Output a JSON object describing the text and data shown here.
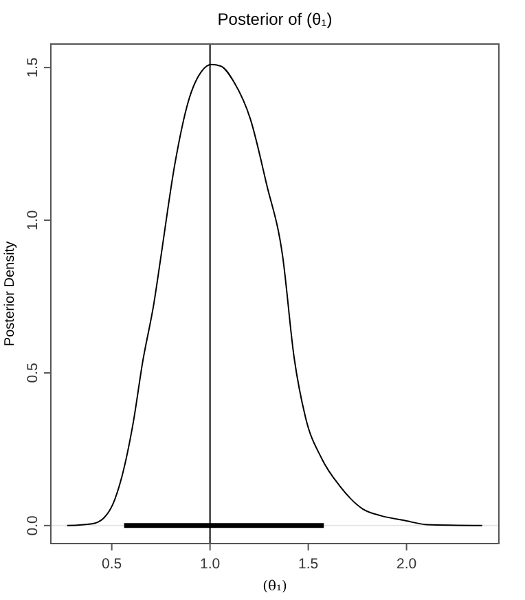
{
  "chart_data": {
    "type": "line",
    "title": "Posterior of (θ₁)",
    "xlabel": "(θ₁)",
    "ylabel": "Posterior Density",
    "xlim": [
      0.19,
      2.47
    ],
    "ylim": [
      -0.059,
      1.577
    ],
    "xticks": [
      {
        "value": 0.5,
        "label": "0.5"
      },
      {
        "value": 1,
        "label": "1.0"
      },
      {
        "value": 1.5,
        "label": "1.5"
      },
      {
        "value": 2,
        "label": "2.0"
      }
    ],
    "yticks": [
      {
        "value": 0,
        "label": "0.0"
      },
      {
        "value": 0.5,
        "label": "0.5"
      },
      {
        "value": 1,
        "label": "1.0"
      },
      {
        "value": 1.5,
        "label": "1.5"
      }
    ],
    "grid": false,
    "marker": "none",
    "line_style": "solid",
    "series": [
      {
        "color": "#000000",
        "x": [
          0.273,
          0.4,
          0.458,
          0.505,
          0.551,
          0.61,
          0.657,
          0.715,
          0.75,
          0.82,
          0.89,
          0.96,
          1.007,
          1.054,
          1.124,
          1.206,
          1.287,
          1.37,
          1.428,
          1.486,
          1.568,
          1.661,
          1.778,
          1.871,
          1.988,
          2.105,
          2.385
        ],
        "values": [
          0,
          0.006,
          0.024,
          0.069,
          0.159,
          0.34,
          0.535,
          0.73,
          0.88,
          1.18,
          1.39,
          1.49,
          1.51,
          1.505,
          1.45,
          1.33,
          1.12,
          0.88,
          0.55,
          0.354,
          0.22,
          0.129,
          0.054,
          0.032,
          0.017,
          0.003,
          0
        ]
      },
      {
        "color": "#000000",
        "x": [
          0.563,
          1.579
        ],
        "values": [
          0,
          0
        ]
      }
    ],
    "ref_lines": [
      {
        "axis": "x",
        "value": 1,
        "color": "#000000"
      },
      {
        "axis": "y",
        "value": 0,
        "color": "#e6e6e6"
      }
    ]
  }
}
